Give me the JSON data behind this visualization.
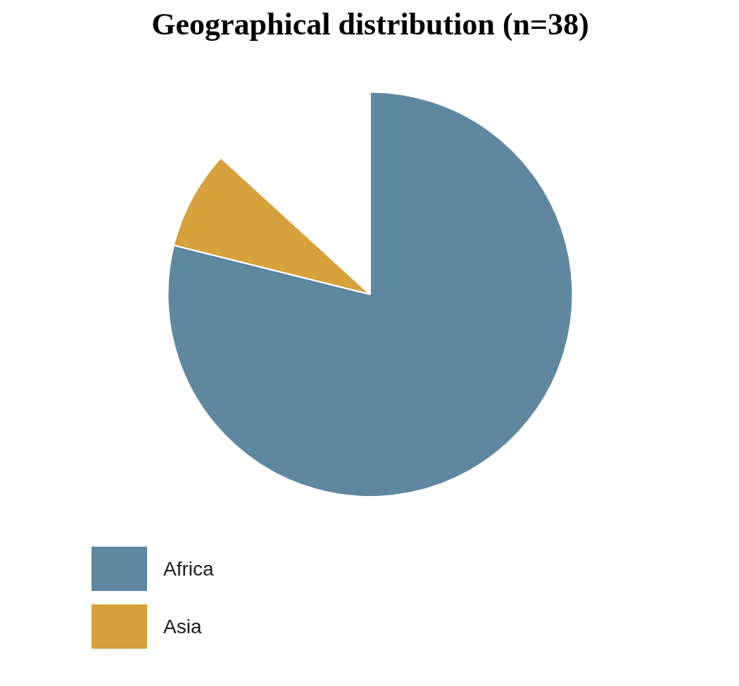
{
  "chart_data": {
    "type": "pie",
    "title": "Geographical distribution (n=38)",
    "categories": [
      "Africa",
      "Asia",
      null
    ],
    "values": [
      78.9,
      7.9,
      13.2
    ],
    "colors": [
      "#5f88a0",
      "#d7a13b",
      "#ffffff"
    ],
    "legend": "bottom left"
  }
}
